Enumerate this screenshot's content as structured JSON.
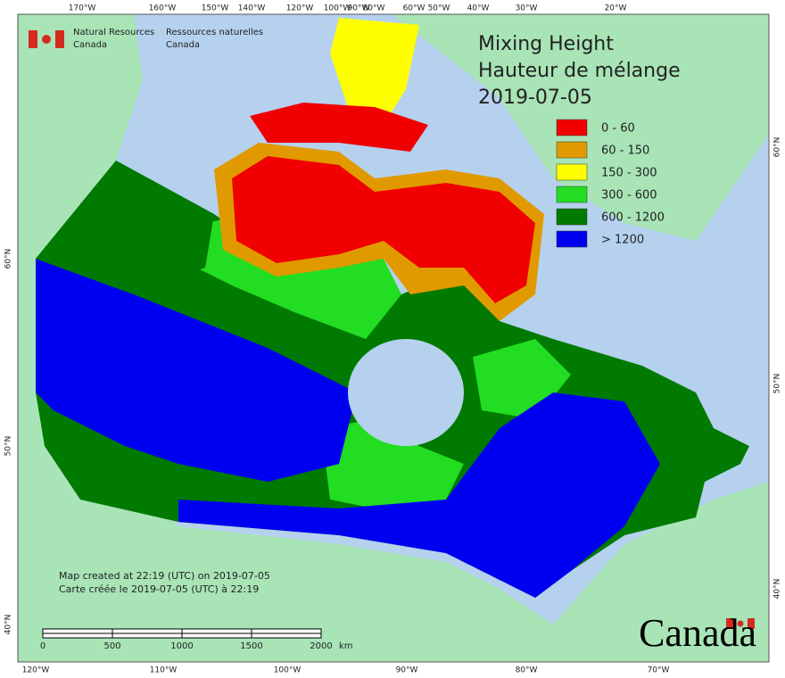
{
  "header": {
    "title_lines": [
      "Mixing Height",
      "Hauteur de mélange",
      "2019-07-05"
    ]
  },
  "legend": {
    "entries": [
      {
        "label": "0 - 60",
        "color": "#f00000"
      },
      {
        "label": "60 - 150",
        "color": "#e09a00"
      },
      {
        "label": "150 - 300",
        "color": "#ffff00"
      },
      {
        "label": "300 - 600",
        "color": "#22dd22"
      },
      {
        "label": "600 - 1200",
        "color": "#007a00"
      },
      {
        "label": "> 1200",
        "color": "#0000f0"
      }
    ]
  },
  "agency": {
    "en": [
      "Natural Resources",
      "Canada"
    ],
    "fr": [
      "Ressources naturelles",
      "Canada"
    ]
  },
  "wordmark": "Canada",
  "credits": [
    "Map created at 22:19 (UTC) on 2019-07-05",
    "Carte créée le 2019-07-05 (UTC) à 22:19"
  ],
  "scale_bar": {
    "labels": [
      "0",
      "500",
      "1000",
      "1500",
      "2000"
    ],
    "unit": "km"
  },
  "graticule": {
    "top": [
      "170°W",
      "160°W",
      "150°W",
      "140°W",
      "120°W",
      "100°W",
      "90°W",
      "80°W",
      "60°W",
      "50°W",
      "40°W",
      "30°W",
      "20°W"
    ],
    "bottom": [
      "120°W",
      "110°W",
      "100°W",
      "90°W",
      "80°W",
      "70°W"
    ],
    "left": [
      "60°N",
      "50°N",
      "40°N"
    ],
    "right": [
      "60°N",
      "50°N",
      "40°N"
    ]
  }
}
